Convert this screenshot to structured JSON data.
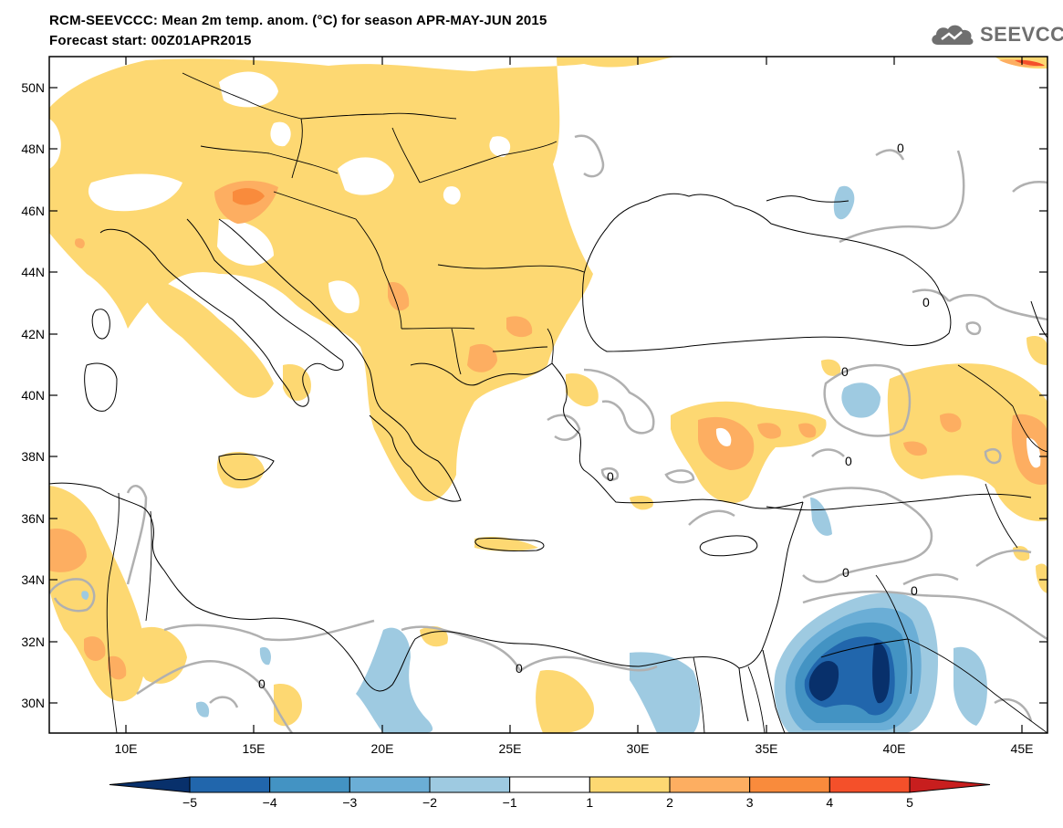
{
  "header": {
    "title": "RCM-SEEVCCC: Mean 2m temp. anom. (°C) for season APR-MAY-JUN 2015",
    "subtitle": "Forecast start: 00Z01APR2015"
  },
  "logo": {
    "text": "SEEVCCC",
    "icon": "cloud-icon"
  },
  "map": {
    "lon_range": [
      7,
      46
    ],
    "lat_range": [
      29,
      51
    ],
    "lat_ticks": [
      "50N",
      "48N",
      "46N",
      "44N",
      "42N",
      "40N",
      "38N",
      "36N",
      "34N",
      "32N",
      "30N"
    ],
    "lon_ticks": [
      "10E",
      "15E",
      "20E",
      "25E",
      "30E",
      "35E",
      "40E",
      "45E"
    ],
    "contour_label": "0"
  },
  "colorbar": {
    "labels": [
      "−5",
      "−4",
      "−3",
      "−2",
      "−1",
      "1",
      "2",
      "3",
      "4",
      "5"
    ],
    "colors": [
      "#08306b",
      "#2166ac",
      "#4393c3",
      "#6baed6",
      "#9ecae1",
      "#ffffff",
      "#fdd872",
      "#fdae61",
      "#f98b3c",
      "#f4502a",
      "#c81e1e"
    ]
  },
  "palette": {
    "warm1": "#fdd872",
    "warm2": "#fdae61",
    "warm3": "#f98b3c",
    "cool1": "#9ecae1",
    "cool2": "#6baed6",
    "cool3": "#4393c3",
    "cool4": "#2166ac",
    "cool5": "#08306b",
    "contour": "#b0b0b0",
    "border": "#000000"
  }
}
